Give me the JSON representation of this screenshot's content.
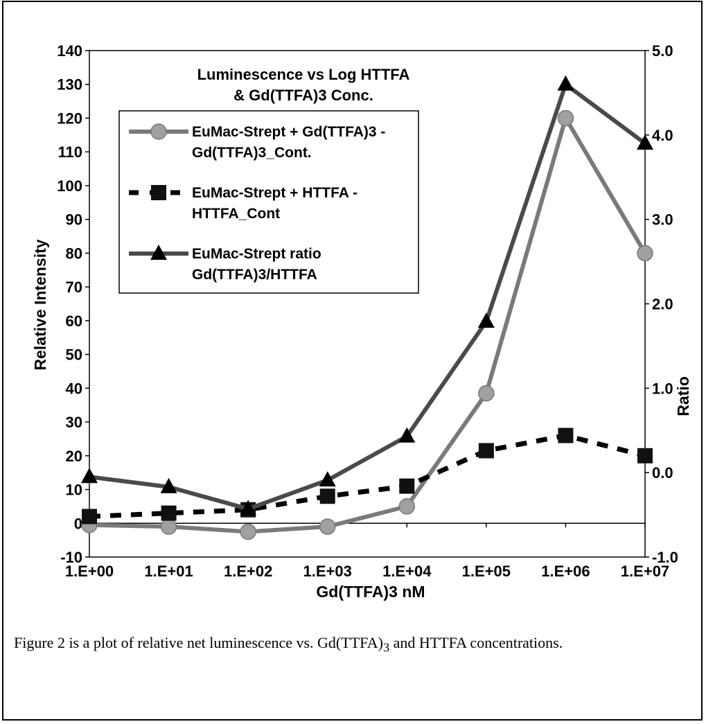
{
  "chart_data": {
    "type": "line",
    "title": "Luminescence vs Log HTTFA & Gd(TTFA)3 Conc.",
    "title_lines": [
      "Luminescence vs Log HTTFA",
      "& Gd(TTFA)3 Conc."
    ],
    "xlabel": "Gd(TTFA)3 nM",
    "ylabel": "Relative Intensity",
    "y2label": "Ratio",
    "x_scale": "log",
    "categories": [
      "1.E+00",
      "1.E+01",
      "1.E+02",
      "1.E+03",
      "1.E+04",
      "1.E+05",
      "1.E+06",
      "1.E+07"
    ],
    "ylim": [
      -10,
      140
    ],
    "y_ticks": [
      "140",
      "130",
      "120",
      "110",
      "100",
      "90",
      "80",
      "70",
      "60",
      "50",
      "40",
      "30",
      "20",
      "10",
      "0",
      "-10"
    ],
    "y2lim": [
      -1.0,
      5.0
    ],
    "y2_ticks": [
      "5.0",
      "4.0",
      "3.0",
      "2.0",
      "1.0",
      "0.0",
      "-1.0"
    ],
    "grid": false,
    "legend_position": "top-left",
    "series": [
      {
        "name": "EuMac-Strept + Gd(TTFA)3 - Gd(TTFA)3_Cont.",
        "legend_lines": [
          "EuMac-Strept + Gd(TTFA)3 -",
          "Gd(TTFA)3_Cont."
        ],
        "axis": "left",
        "marker": "circle",
        "line": "solid",
        "color": "#7a7a7a",
        "values": [
          -0.5,
          -1,
          -2.5,
          -1,
          5,
          38.5,
          120,
          80
        ]
      },
      {
        "name": "EuMac-Strept + HTTFA - HTTFA_Cont",
        "legend_lines": [
          "EuMac-Strept + HTTFA -",
          "HTTFA_Cont"
        ],
        "axis": "left",
        "marker": "square",
        "line": "dashed",
        "color": "#000000",
        "values": [
          2,
          3,
          4,
          8,
          11,
          21.5,
          26,
          20
        ]
      },
      {
        "name": "EuMac-Strept ratio Gd(TTFA)3/HTTFA",
        "legend_lines": [
          "EuMac-Strept ratio",
          "Gd(TTFA)3/HTTFA"
        ],
        "axis": "right",
        "marker": "triangle",
        "line": "solid",
        "color": "#4a4a4a",
        "values": [
          -0.05,
          -0.17,
          -0.43,
          -0.09,
          0.43,
          1.79,
          4.6,
          3.9
        ]
      }
    ]
  },
  "caption": {
    "before": "Figure 2 is a plot of relative net luminescence vs. Gd(TTFA)",
    "sub": "3",
    "after": " and HTTFA concentrations."
  }
}
